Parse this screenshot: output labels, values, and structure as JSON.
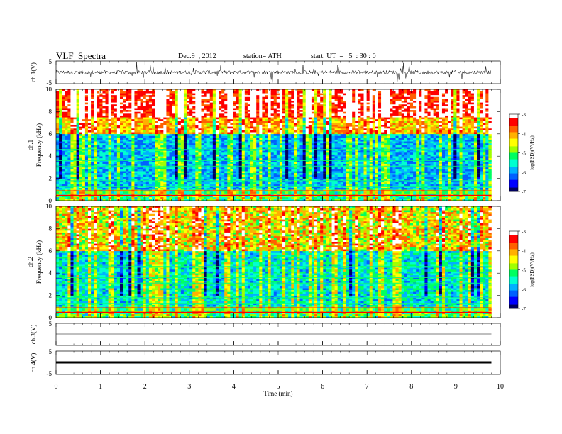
{
  "header": {
    "title": "VLF  Spectra",
    "date": "Dec.9  , 2012",
    "station": "station= ATH",
    "start_time": "start  UT  =   5  : 30 : 0"
  },
  "chart_data": [
    {
      "type": "line",
      "panel": "ch1-waveform",
      "ylabel": "ch.1(V)",
      "ylim": [
        -5,
        5
      ],
      "yticks": [
        "5",
        "-5"
      ],
      "xlim": [
        0,
        10
      ],
      "series_color": "#000000"
    },
    {
      "type": "heatmap",
      "panel": "ch1-spectrogram",
      "ylabel_line1": "ch.1",
      "ylabel_line2": "Frequency  (kHz)",
      "ylim": [
        0,
        10
      ],
      "yticks": [
        "0",
        "2",
        "4",
        "6",
        "8",
        "10"
      ],
      "xlim": [
        0,
        9.8
      ],
      "colorbar": {
        "label": "log(PSD)(V²/Hz)",
        "ticks": [
          "-3",
          "-4",
          "-5",
          "-6",
          "-7"
        ],
        "range": [
          -7,
          -3
        ],
        "colors": [
          "#000060",
          "#0000ff",
          "#00b0ff",
          "#00ff80",
          "#ffff00",
          "#ff8000",
          "#ff0000",
          "#ffffff"
        ]
      }
    },
    {
      "type": "heatmap",
      "panel": "ch2-spectrogram",
      "ylabel_line1": "ch.2",
      "ylabel_line2": "Frequency  (kHz)",
      "ylim": [
        0,
        10
      ],
      "yticks": [
        "0",
        "2",
        "4",
        "6",
        "8",
        "10"
      ],
      "xlim": [
        0,
        9.8
      ],
      "colorbar": {
        "label": "log(PSD)(V²/Hz)",
        "ticks": [
          "-3",
          "-4",
          "-5",
          "-6",
          "-7"
        ],
        "range": [
          -7,
          -3
        ]
      }
    },
    {
      "type": "line",
      "panel": "ch3-waveform",
      "ylabel": "ch.3(V)",
      "ylim": [
        -5,
        5
      ],
      "yticks": [
        "5"
      ]
    },
    {
      "type": "line",
      "panel": "ch4-waveform",
      "ylabel": "ch.4(V)",
      "ylim": [
        -5,
        5
      ],
      "yticks": [
        "5",
        "-5"
      ]
    }
  ],
  "x_axis": {
    "label": "Time  (min)",
    "ticks": [
      "0",
      "1",
      "2",
      "3",
      "4",
      "5",
      "6",
      "7",
      "8",
      "9",
      "10"
    ],
    "range": [
      0,
      10
    ]
  }
}
